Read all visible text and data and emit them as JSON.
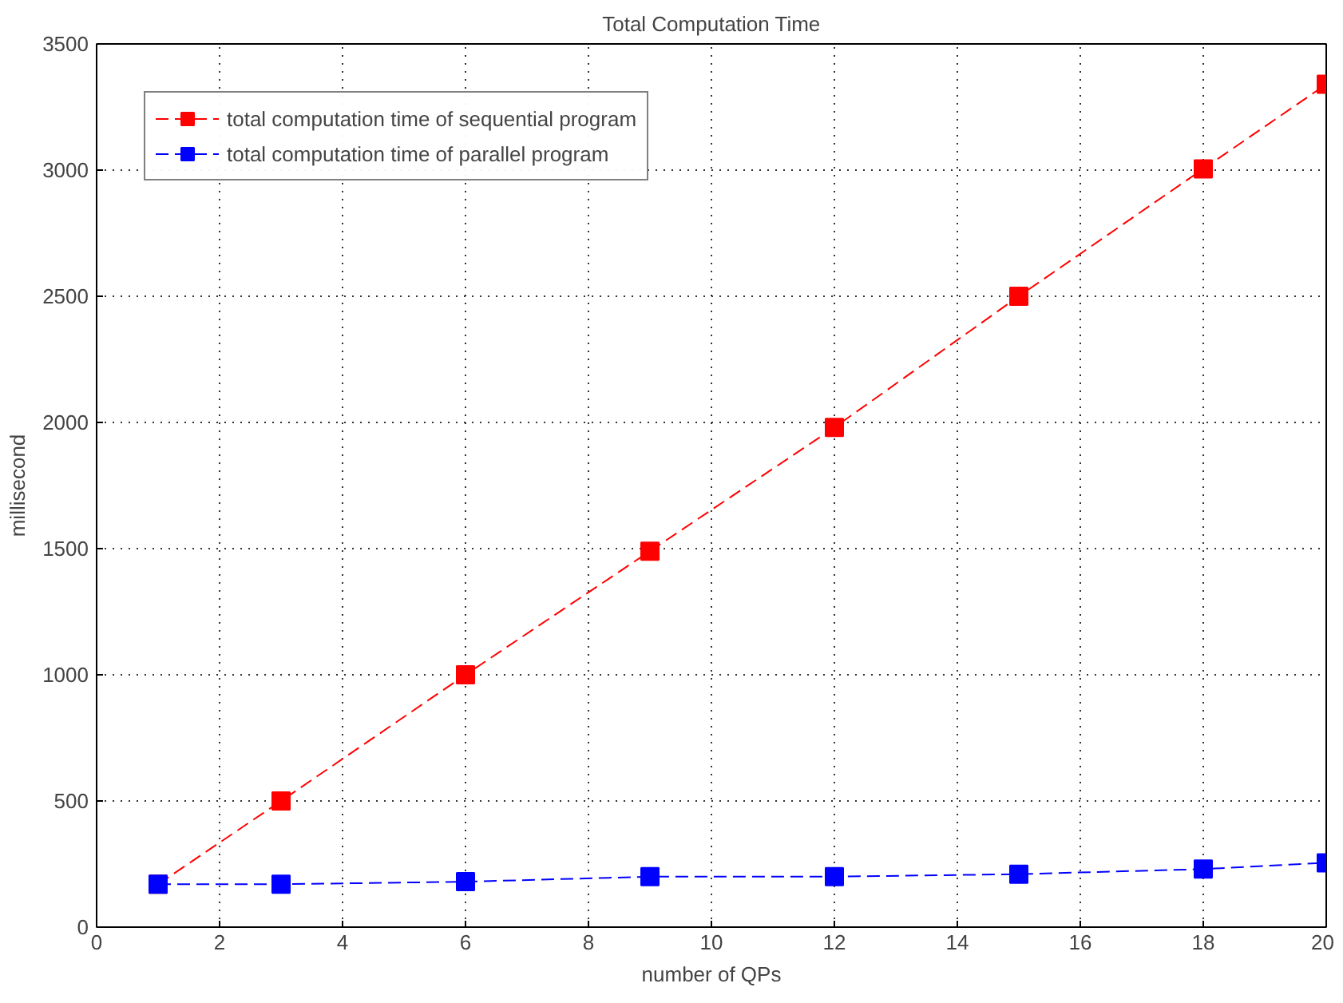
{
  "chart_data": {
    "type": "line",
    "title": "Total Computation Time",
    "xlabel": "number of QPs",
    "ylabel": "millisecond",
    "x": [
      1,
      3,
      6,
      9,
      12,
      15,
      18,
      20
    ],
    "series": [
      {
        "name": "total computation time of sequential program",
        "color": "#ff0000",
        "values": [
          170,
          500,
          1000,
          1490,
          1980,
          2500,
          3005,
          3340
        ]
      },
      {
        "name": "total computation time of parallel program",
        "color": "#0000ff",
        "values": [
          170,
          170,
          180,
          200,
          200,
          210,
          230,
          255
        ]
      }
    ],
    "xlim": [
      0,
      20
    ],
    "xticks": [
      0,
      2,
      4,
      6,
      8,
      10,
      12,
      14,
      16,
      18,
      20
    ],
    "ylim": [
      0,
      3500
    ],
    "yticks": [
      0,
      500,
      1000,
      1500,
      2000,
      2500,
      3000,
      3500
    ],
    "grid": true,
    "legend": "top left",
    "marker": "square",
    "line_style": "dashed"
  }
}
